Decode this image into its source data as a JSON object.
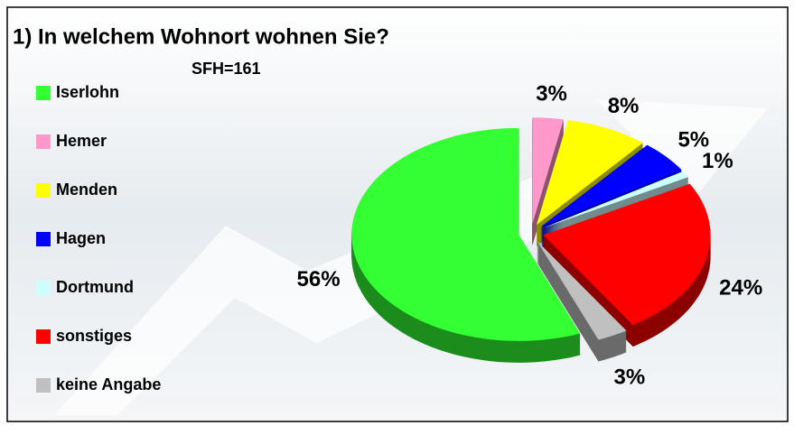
{
  "chart_data": {
    "type": "pie3d",
    "title": "1) In welchem Wohnort wohnen Sie?",
    "subtitle": "SFH=161",
    "categories": [
      "Iserlohn",
      "Hemer",
      "Menden",
      "Hagen",
      "Dortmund",
      "sonstiges",
      "keine Angabe"
    ],
    "values": [
      56,
      3,
      8,
      5,
      1,
      24,
      3
    ],
    "value_labels": [
      "56%",
      "3%",
      "8%",
      "5%",
      "1%",
      "24%",
      "3%"
    ],
    "colors": [
      "#33ff33",
      "#ff99cc",
      "#ffff00",
      "#0000ff",
      "#ccffff",
      "#ff0000",
      "#c0c0c0"
    ],
    "legend": "left"
  }
}
